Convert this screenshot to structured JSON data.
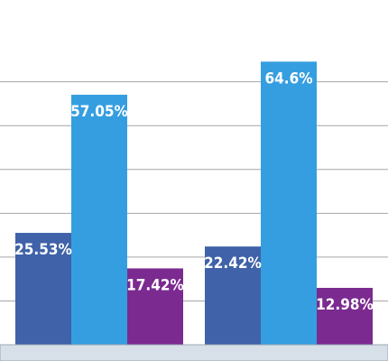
{
  "chart_data": {
    "type": "bar",
    "categories": [
      "",
      ""
    ],
    "series": [
      {
        "values": [
          25.53,
          22.42
        ],
        "labels": [
          "25.53%",
          "22.42%"
        ],
        "color": "#3f62a8"
      },
      {
        "values": [
          57.05,
          64.6
        ],
        "labels": [
          "57.05%",
          "64.6%"
        ],
        "color": "#359ee0"
      },
      {
        "values": [
          17.42,
          12.98
        ],
        "labels": [
          "17.42%",
          "12.98%"
        ],
        "color": "#7b2a90"
      }
    ],
    "ylim": [
      0,
      65
    ],
    "grid": true,
    "gridline_values": [
      10,
      20,
      30,
      40,
      50,
      60
    ],
    "colors": {
      "background": "#ffffff",
      "gridline": "#a6a6a6",
      "axis_band": "#d7e0e8",
      "axis_band_border": "#9aa6b2",
      "label_text": "#ffffff"
    }
  }
}
